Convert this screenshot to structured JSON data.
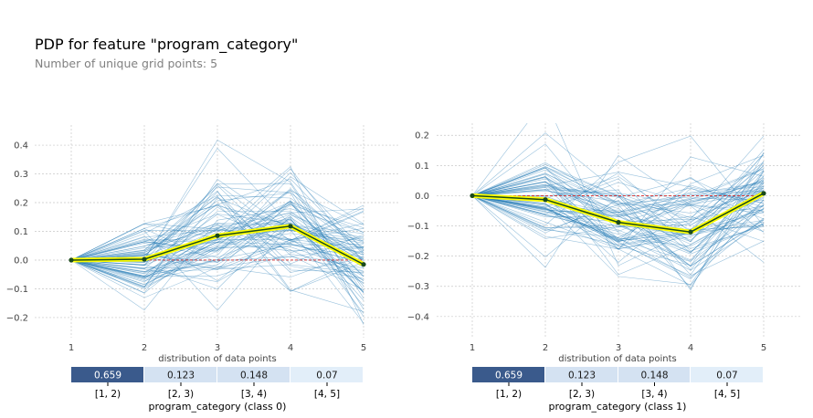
{
  "title": "PDP for feature \"program_category\"",
  "subtitle": "Number of unique grid points: 5",
  "colors": {
    "ice_line": "#1f77b4",
    "pdp_line": "#1a4a1a",
    "pdp_highlight": "#ffff00",
    "baseline": "#d62728",
    "grid": "#c8c8c8",
    "bar_dark": "#3a5a8c",
    "bar_mid": "#d4e2f2",
    "bar_light": "#e2eef9"
  },
  "chart_data": [
    {
      "type": "line",
      "name": "class 0",
      "x": [
        1,
        2,
        3,
        4,
        5
      ],
      "xticks": [
        "1",
        "2",
        "3",
        "4",
        "5"
      ],
      "yticks": [
        "0.4",
        "0.3",
        "0.2",
        "0.1",
        "0.0",
        "−0.1",
        "−0.2"
      ],
      "ytick_values": [
        0.4,
        0.3,
        0.2,
        0.1,
        0.0,
        -0.1,
        -0.2
      ],
      "ylim": [
        -0.27,
        0.47
      ],
      "grid": true,
      "pdp_values": [
        0.0,
        0.003,
        0.085,
        0.118,
        -0.015
      ],
      "ice_description_lines": 80,
      "distribution_label": "distribution of data points",
      "bins": [
        "[1, 2)",
        "[2, 3)",
        "[3, 4)",
        "[4, 5]"
      ],
      "bin_counts": [
        0.659,
        0.123,
        0.148,
        0.07
      ],
      "bin_count_labels": [
        "0.659",
        "0.123",
        "0.148",
        "0.07"
      ],
      "xlabel": "program_category (class 0)"
    },
    {
      "type": "line",
      "name": "class 1",
      "x": [
        1,
        2,
        3,
        4,
        5
      ],
      "xticks": [
        "1",
        "2",
        "3",
        "4",
        "5"
      ],
      "yticks": [
        "0.2",
        "0.1",
        "0.0",
        "−0.1",
        "−0.2",
        "−0.3",
        "−0.4"
      ],
      "ytick_values": [
        0.2,
        0.1,
        0.0,
        -0.1,
        -0.2,
        -0.3,
        -0.4
      ],
      "ylim": [
        -0.47,
        0.24
      ],
      "grid": true,
      "pdp_values": [
        0.0,
        -0.013,
        -0.088,
        -0.12,
        0.008
      ],
      "distribution_label": "distribution of data points",
      "bins": [
        "[1, 2)",
        "[2, 3)",
        "[3, 4)",
        "[4, 5]"
      ],
      "bin_counts": [
        0.659,
        0.123,
        0.148,
        0.07
      ],
      "bin_count_labels": [
        "0.659",
        "0.123",
        "0.148",
        "0.07"
      ],
      "xlabel": "program_category (class 1)"
    }
  ]
}
